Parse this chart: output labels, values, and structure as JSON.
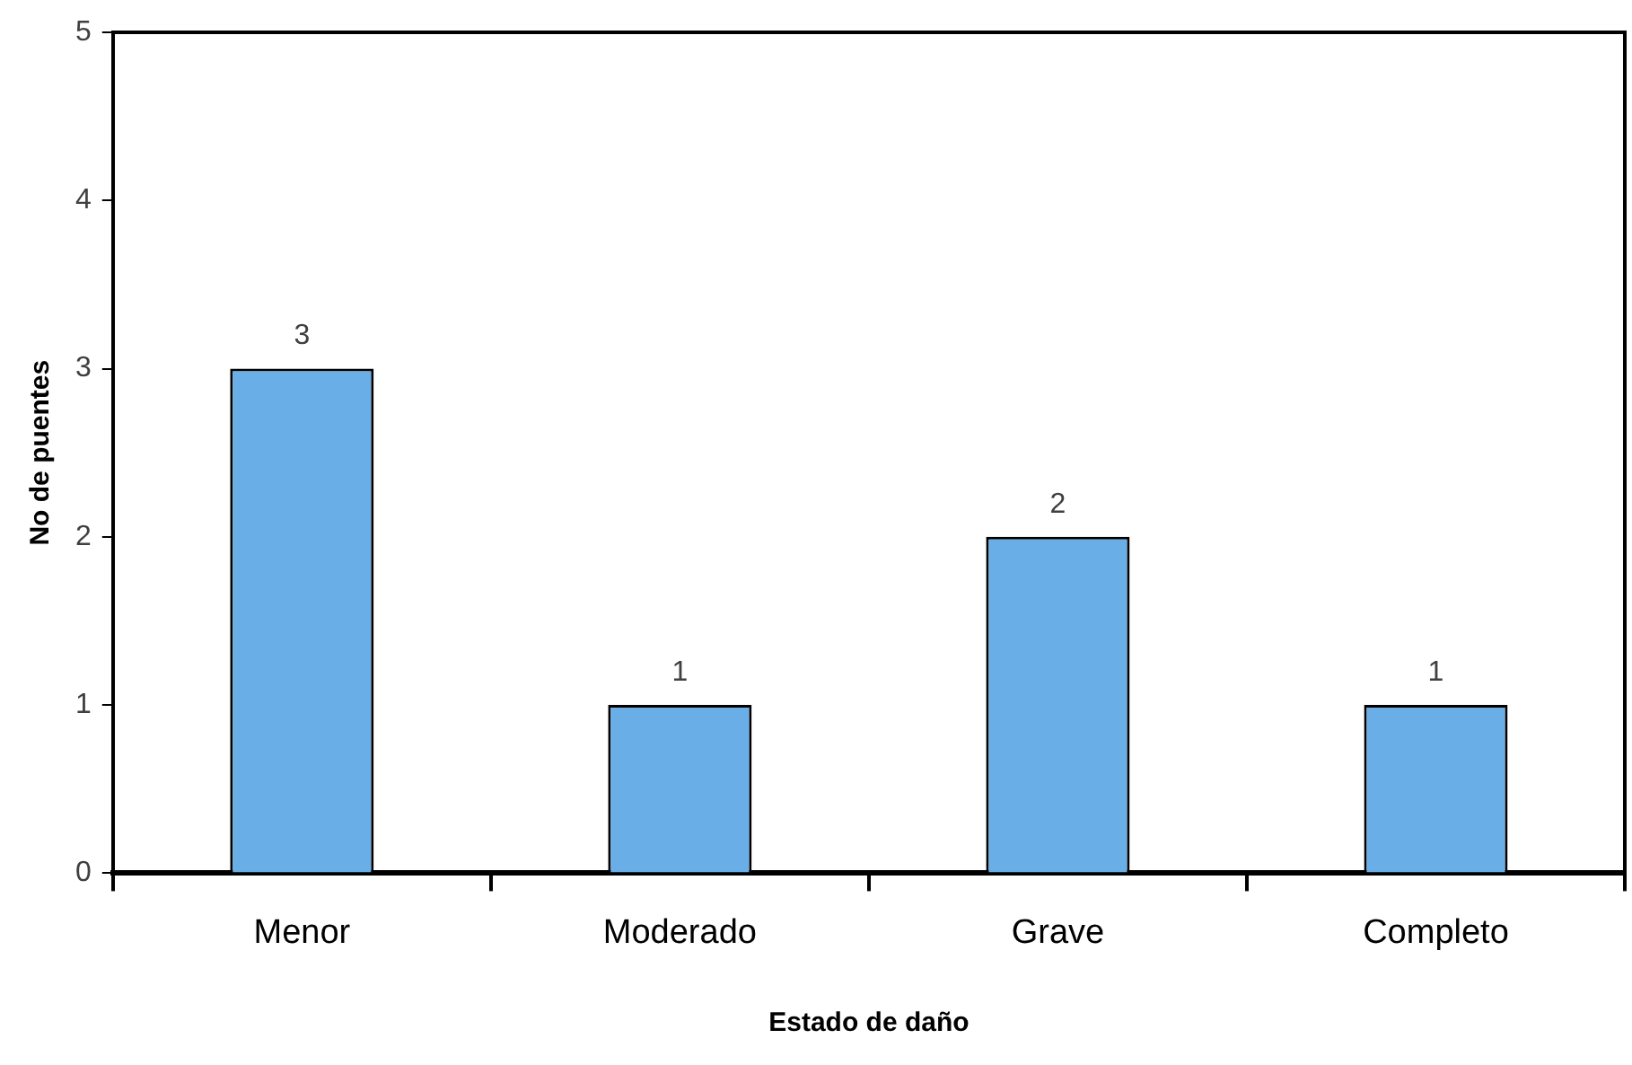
{
  "chart_data": {
    "type": "bar",
    "xlabel": "Estado de daño",
    "ylabel": "No de puentes",
    "categories": [
      "Menor",
      "Moderado",
      "Grave",
      "Completo"
    ],
    "values": [
      3,
      1,
      2,
      1
    ],
    "color": "#6aaee8",
    "ylim": [
      0,
      5
    ],
    "yticks": [
      0,
      1,
      2,
      3,
      4,
      5
    ],
    "grid": false,
    "data_labels": true
  }
}
